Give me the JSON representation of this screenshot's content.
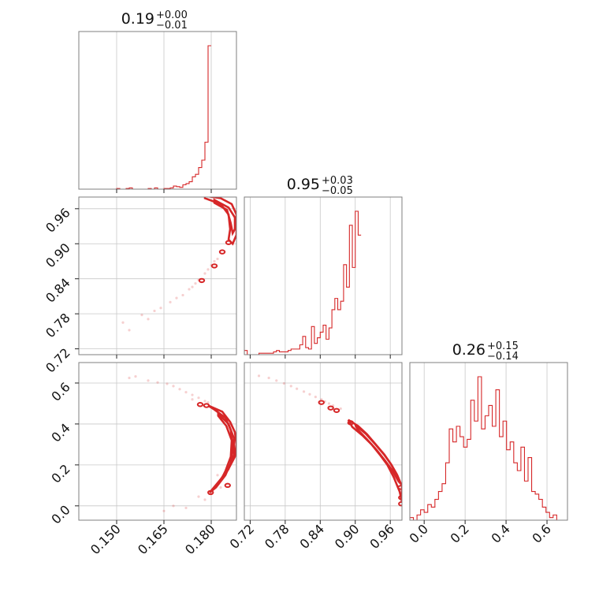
{
  "chart_data": {
    "type": "corner",
    "color": "#d62728",
    "parameters": [
      {
        "title_value": "0.19",
        "title_plus": "+0.00",
        "title_minus": "−0.01",
        "range": [
          0.138,
          0.188
        ],
        "ticks": [
          0.15,
          0.165,
          0.18
        ],
        "tick_labels": [
          "0.150",
          "0.165",
          "0.180"
        ],
        "hist_edges_start": 0.138,
        "hist_bin_width": 0.001,
        "hist_counts": [
          0,
          0,
          0,
          0,
          0,
          0,
          0,
          0,
          0,
          0,
          0,
          0,
          1,
          0,
          0,
          1,
          2,
          0,
          0,
          0,
          0,
          0,
          1,
          0,
          2,
          0,
          0,
          1,
          1,
          2,
          5,
          4,
          3,
          7,
          9,
          12,
          20,
          24,
          35,
          47,
          76,
          232
        ]
      },
      {
        "title_value": "0.95",
        "title_plus": "+0.03",
        "title_minus": "−0.05",
        "range": [
          0.71,
          0.98
        ],
        "ticks": [
          0.72,
          0.78,
          0.84,
          0.9,
          0.96
        ],
        "tick_labels": [
          "0.72",
          "0.78",
          "0.84",
          "0.90",
          "0.96"
        ],
        "hist_edges_start": 0.71,
        "hist_bin_width": 0.005,
        "hist_counts": [
          3,
          0,
          0,
          0,
          0,
          1,
          1,
          1,
          1,
          1,
          2,
          3,
          2,
          2,
          2,
          3,
          4,
          4,
          4,
          7,
          13,
          5,
          4,
          20,
          8,
          12,
          16,
          21,
          11,
          19,
          32,
          40,
          32,
          38,
          64,
          48,
          92,
          62,
          102,
          85
        ]
      },
      {
        "title_value": "0.26",
        "title_plus": "+0.15",
        "title_minus": "−0.14",
        "range": [
          -0.07,
          0.7
        ],
        "ticks": [
          0.0,
          0.2,
          0.4,
          0.6
        ],
        "tick_labels": [
          "0.0",
          "0.2",
          "0.4",
          "0.6"
        ],
        "hist_edges_start": -0.07,
        "hist_bin_width": 0.0175,
        "hist_counts": [
          1,
          0,
          2,
          4,
          3,
          6,
          5,
          8,
          11,
          14,
          22,
          35,
          30,
          36,
          32,
          28,
          31,
          46,
          38,
          55,
          35,
          40,
          44,
          36,
          50,
          32,
          38,
          27,
          30,
          22,
          19,
          28,
          15,
          24,
          11,
          10,
          8,
          5,
          3,
          1,
          2,
          0,
          0,
          0
        ]
      }
    ],
    "pairs": [
      {
        "row": 1,
        "col": 0,
        "samples": [
          [
            0.152,
            0.765
          ],
          [
            0.154,
            0.752
          ],
          [
            0.158,
            0.778
          ],
          [
            0.16,
            0.771
          ],
          [
            0.162,
            0.785
          ],
          [
            0.164,
            0.79
          ],
          [
            0.167,
            0.8
          ],
          [
            0.169,
            0.807
          ],
          [
            0.171,
            0.812
          ],
          [
            0.173,
            0.822
          ],
          [
            0.174,
            0.826
          ],
          [
            0.176,
            0.838
          ],
          [
            0.178,
            0.849
          ],
          [
            0.18,
            0.863
          ],
          [
            0.182,
            0.874
          ],
          [
            0.175,
            0.832
          ],
          [
            0.179,
            0.856
          ],
          [
            0.181,
            0.87
          ]
        ],
        "contour_outer": [
          [
            0.178,
            0.982
          ],
          [
            0.183,
            0.978
          ],
          [
            0.1865,
            0.968
          ],
          [
            0.188,
            0.95
          ],
          [
            0.188,
            0.915
          ],
          [
            0.1868,
            0.9
          ],
          [
            0.1855,
            0.907
          ],
          [
            0.186,
            0.925
          ],
          [
            0.1855,
            0.95
          ],
          [
            0.183,
            0.968
          ],
          [
            0.178,
            0.978
          ]
        ],
        "contour_inner": [
          [
            0.181,
            0.975
          ],
          [
            0.1855,
            0.962
          ],
          [
            0.1875,
            0.945
          ],
          [
            0.1875,
            0.925
          ],
          [
            0.1868,
            0.918
          ],
          [
            0.1862,
            0.935
          ],
          [
            0.185,
            0.958
          ],
          [
            0.181,
            0.97
          ]
        ],
        "blobs": [
          [
            0.1855,
            0.902
          ],
          [
            0.1835,
            0.886
          ],
          [
            0.181,
            0.862
          ],
          [
            0.177,
            0.837
          ]
        ]
      },
      {
        "row": 2,
        "col": 0,
        "samples": [
          [
            0.154,
            0.625
          ],
          [
            0.156,
            0.632
          ],
          [
            0.16,
            0.612
          ],
          [
            0.163,
            0.603
          ],
          [
            0.166,
            0.596
          ],
          [
            0.168,
            0.585
          ],
          [
            0.17,
            0.57
          ],
          [
            0.172,
            0.555
          ],
          [
            0.174,
            0.542
          ],
          [
            0.176,
            0.528
          ],
          [
            0.178,
            0.512
          ],
          [
            0.179,
            0.505
          ],
          [
            0.182,
            0.15
          ],
          [
            0.183,
            0.09
          ],
          [
            0.18,
            0.06
          ],
          [
            0.178,
            0.03
          ],
          [
            0.172,
            -0.01
          ],
          [
            0.165,
            -0.025
          ],
          [
            0.168,
            0.0
          ],
          [
            0.176,
            0.045
          ],
          [
            0.174,
            0.52
          ]
        ],
        "contour_outer": [
          [
            0.179,
            0.49
          ],
          [
            0.1835,
            0.46
          ],
          [
            0.186,
            0.41
          ],
          [
            0.1875,
            0.36
          ],
          [
            0.188,
            0.3
          ],
          [
            0.1875,
            0.24
          ],
          [
            0.1858,
            0.19
          ],
          [
            0.183,
            0.13
          ],
          [
            0.1795,
            0.065
          ],
          [
            0.1815,
            0.09
          ],
          [
            0.1845,
            0.15
          ],
          [
            0.1862,
            0.21
          ],
          [
            0.1868,
            0.29
          ],
          [
            0.1862,
            0.37
          ],
          [
            0.1845,
            0.43
          ],
          [
            0.181,
            0.47
          ]
        ],
        "contour_inner": [
          [
            0.1822,
            0.45
          ],
          [
            0.1855,
            0.4
          ],
          [
            0.1872,
            0.33
          ],
          [
            0.1872,
            0.25
          ],
          [
            0.1855,
            0.18
          ],
          [
            0.1832,
            0.13
          ],
          [
            0.1845,
            0.17
          ],
          [
            0.1862,
            0.24
          ],
          [
            0.1865,
            0.32
          ],
          [
            0.1848,
            0.39
          ],
          [
            0.1822,
            0.44
          ]
        ],
        "blobs": [
          [
            0.1785,
            0.49
          ],
          [
            0.1765,
            0.495
          ],
          [
            0.1798,
            0.065
          ],
          [
            0.1852,
            0.1
          ]
        ]
      },
      {
        "row": 2,
        "col": 1,
        "samples": [
          [
            0.735,
            0.635
          ],
          [
            0.752,
            0.625
          ],
          [
            0.765,
            0.612
          ],
          [
            0.778,
            0.598
          ],
          [
            0.79,
            0.585
          ],
          [
            0.8,
            0.572
          ],
          [
            0.812,
            0.558
          ],
          [
            0.822,
            0.545
          ],
          [
            0.832,
            0.532
          ],
          [
            0.842,
            0.52
          ],
          [
            0.848,
            0.51
          ],
          [
            0.855,
            0.5
          ],
          [
            0.862,
            0.49
          ],
          [
            0.875,
            0.475
          ]
        ],
        "contour_outer": [
          [
            0.888,
            0.42
          ],
          [
            0.905,
            0.39
          ],
          [
            0.92,
            0.35
          ],
          [
            0.935,
            0.3
          ],
          [
            0.95,
            0.25
          ],
          [
            0.962,
            0.2
          ],
          [
            0.972,
            0.15
          ],
          [
            0.98,
            0.095
          ],
          [
            0.98,
            0.02
          ],
          [
            0.976,
            0.07
          ],
          [
            0.966,
            0.14
          ],
          [
            0.955,
            0.2
          ],
          [
            0.942,
            0.25
          ],
          [
            0.928,
            0.3
          ],
          [
            0.912,
            0.345
          ],
          [
            0.895,
            0.385
          ]
        ],
        "contour_inner": [
          [
            0.9,
            0.395
          ],
          [
            0.918,
            0.352
          ],
          [
            0.934,
            0.302
          ],
          [
            0.949,
            0.252
          ],
          [
            0.961,
            0.205
          ],
          [
            0.971,
            0.155
          ],
          [
            0.977,
            0.11
          ],
          [
            0.974,
            0.12
          ],
          [
            0.963,
            0.175
          ],
          [
            0.95,
            0.225
          ],
          [
            0.936,
            0.275
          ],
          [
            0.92,
            0.325
          ],
          [
            0.905,
            0.37
          ]
        ],
        "blobs": [
          [
            0.842,
            0.505
          ],
          [
            0.858,
            0.478
          ],
          [
            0.868,
            0.466
          ],
          [
            0.892,
            0.406
          ],
          [
            0.978,
            0.09
          ],
          [
            0.979,
            0.04
          ],
          [
            0.979,
            0.01
          ]
        ]
      }
    ]
  }
}
